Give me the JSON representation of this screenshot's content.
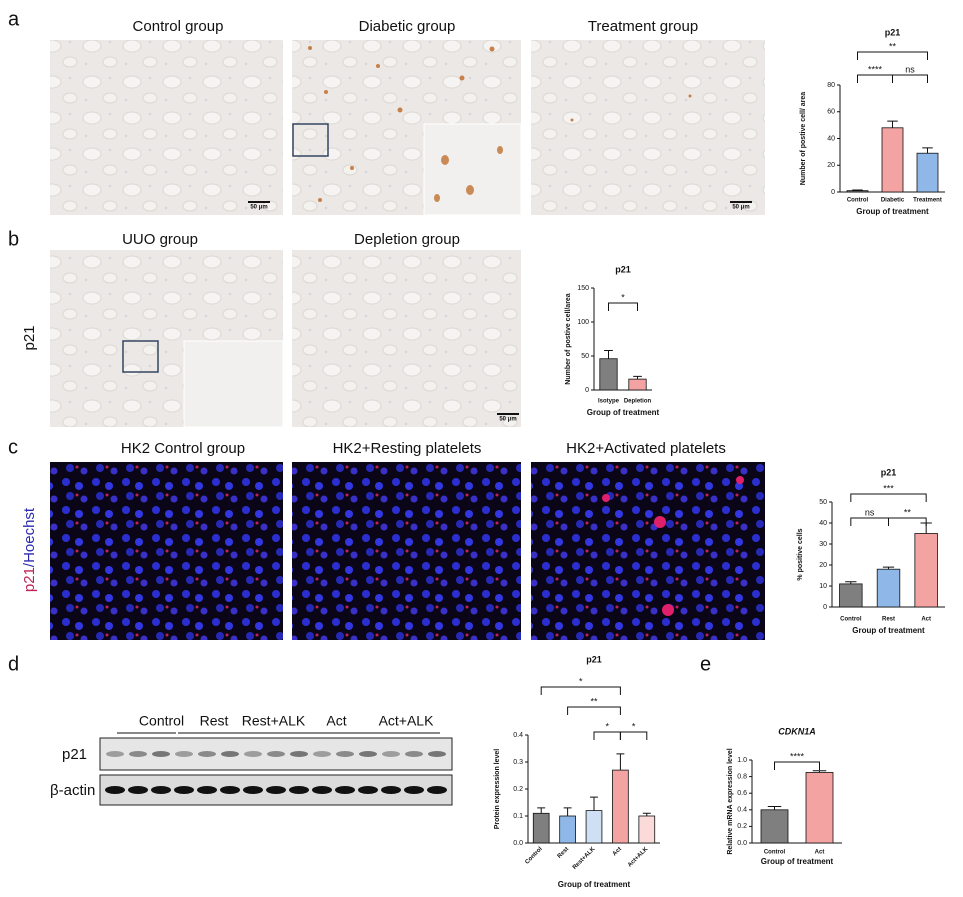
{
  "panels": {
    "labels": [
      "a",
      "b",
      "c",
      "d",
      "e"
    ],
    "captions": [
      "Control group",
      "Diabetic group",
      "Treatment group",
      "UUO group",
      "Depletion group",
      "HK2 Control group",
      "HK2+Resting platelets",
      "HK2+Activated platelets"
    ],
    "scale_bar": "50 μm",
    "row_label_b": "p21",
    "row_label_c_1": "p21",
    "row_label_c_2": "/Hoechst",
    "blot_groups": [
      "Control",
      "Rest",
      "Rest+ALK",
      "Act",
      "Act+ALK"
    ],
    "blot_bands": [
      "p21",
      "β-actin"
    ]
  },
  "chart_data": [
    {
      "type": "bar",
      "title": "p21",
      "categories": [
        "Control",
        "Diabetic",
        "Treatment"
      ],
      "values": [
        1,
        48,
        29
      ],
      "errors": [
        0.5,
        5,
        4
      ],
      "colors": [
        "#7f7f7f",
        "#f4a3a3",
        "#8fb8e8"
      ],
      "ylim": [
        0,
        80
      ],
      "yticks": [
        0,
        20,
        40,
        60,
        80
      ],
      "ylabel": "Number of postive cell/ area",
      "xlabel": "Group of treatment",
      "annotations": [
        "**",
        "****",
        "ns"
      ]
    },
    {
      "type": "bar",
      "title": "p21",
      "categories": [
        "Isotype",
        "Depletion"
      ],
      "values": [
        46,
        16
      ],
      "errors": [
        12,
        4
      ],
      "colors": [
        "#7f7f7f",
        "#f4a3a3"
      ],
      "ylim": [
        0,
        150
      ],
      "yticks": [
        0,
        50,
        100,
        150
      ],
      "ylabel": "Number of postive cell/area",
      "xlabel": "Group of treatment",
      "annotations": [
        "*"
      ]
    },
    {
      "type": "bar",
      "title": "p21",
      "categories": [
        "Control",
        "Rest",
        "Act"
      ],
      "values": [
        11,
        18,
        35
      ],
      "errors": [
        1,
        1,
        5
      ],
      "colors": [
        "#7f7f7f",
        "#8fb8e8",
        "#f4a3a3"
      ],
      "ylim": [
        0,
        50
      ],
      "yticks": [
        0,
        10,
        20,
        30,
        40,
        50
      ],
      "ylabel": "% positive cells",
      "xlabel": "Group of treatment",
      "annotations": [
        "***",
        "ns",
        "**"
      ]
    },
    {
      "type": "bar",
      "title": "p21",
      "categories": [
        "Control",
        "Rest",
        "Rest+ALK",
        "Act",
        "Act+ALK"
      ],
      "values": [
        0.11,
        0.1,
        0.12,
        0.27,
        0.1
      ],
      "errors": [
        0.02,
        0.03,
        0.05,
        0.06,
        0.01
      ],
      "colors": [
        "#7f7f7f",
        "#8fb8e8",
        "#cfe0f5",
        "#f4a3a3",
        "#fbdada"
      ],
      "ylim": [
        0,
        0.4
      ],
      "yticks": [
        {
          "value": 0,
          "label": "0.0"
        },
        0.1,
        0.2,
        0.3,
        0.4
      ],
      "ylabel": "Protein expression level",
      "xlabel": "Group of treatment",
      "annotations": [
        "*",
        "**",
        "*",
        "*"
      ]
    },
    {
      "type": "bar",
      "title": "CDKN1A",
      "categories": [
        "Control",
        "Act"
      ],
      "values": [
        0.4,
        0.85
      ],
      "errors": [
        0.04,
        0.02
      ],
      "colors": [
        "#7f7f7f",
        "#f4a3a3"
      ],
      "ylim": [
        0,
        1
      ],
      "yticks": [
        {
          "value": 0,
          "label": "0.0"
        },
        0.2,
        0.4,
        0.6,
        0.8,
        {
          "value": 1,
          "label": "1.0"
        }
      ],
      "ylabel": "Relative mRNA expression level",
      "xlabel": "Group of treatment",
      "annotations": [
        "****"
      ]
    }
  ]
}
